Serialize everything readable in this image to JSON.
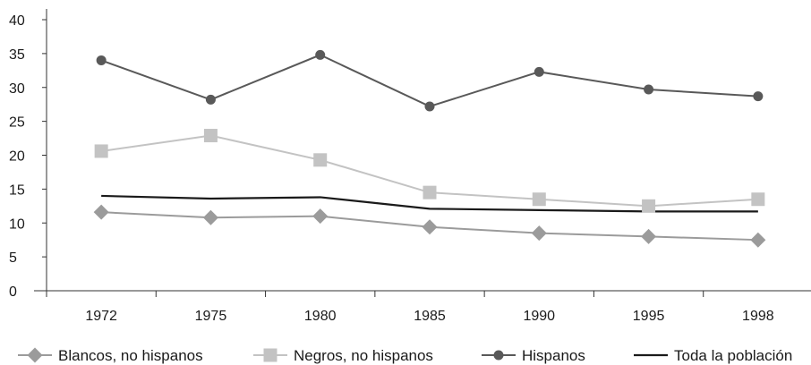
{
  "chart_data": {
    "type": "line",
    "title": "",
    "xlabel": "",
    "ylabel": "",
    "x": [
      "1972",
      "1975",
      "1980",
      "1985",
      "1990",
      "1995",
      "1998"
    ],
    "ylim": [
      0,
      40
    ],
    "yticks": [
      "0",
      "5",
      "10",
      "15",
      "20",
      "25",
      "30",
      "35",
      "40"
    ],
    "grid": false,
    "legend_position": "bottom",
    "series": [
      {
        "name": "Blancos, no hispanos",
        "marker": "diamond",
        "color": "#9b9b9b",
        "values": [
          11.6,
          10.8,
          11.0,
          9.4,
          8.5,
          8.0,
          7.5
        ]
      },
      {
        "name": "Negros, no hispanos",
        "marker": "square",
        "color": "#c3c3c3",
        "values": [
          20.6,
          22.9,
          19.3,
          14.5,
          13.5,
          12.5,
          13.5
        ]
      },
      {
        "name": "Hispanos",
        "marker": "circle",
        "color": "#595959",
        "values": [
          34.0,
          28.2,
          34.8,
          27.2,
          32.3,
          29.7,
          28.7
        ]
      },
      {
        "name": "Toda la población",
        "marker": "none",
        "color": "#1a1a1a",
        "values": [
          14.0,
          13.6,
          13.8,
          12.1,
          11.9,
          11.7,
          11.7
        ]
      }
    ]
  }
}
